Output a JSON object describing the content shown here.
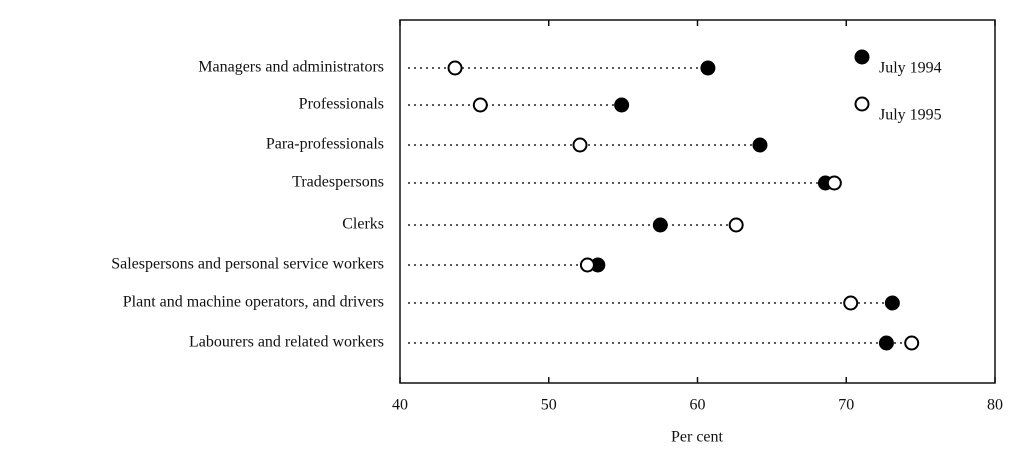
{
  "chart_data": {
    "type": "dot",
    "categories": [
      "Managers and administrators",
      "Professionals",
      "Para-professionals",
      "Tradespersons",
      "Clerks",
      "Salespersons and personal service workers",
      "Plant and machine operators, and drivers",
      "Labourers and related workers"
    ],
    "series": [
      {
        "name": "July 1994",
        "color": "#000000",
        "fill": "#000000",
        "values": [
          60.7,
          54.9,
          64.2,
          68.6,
          57.5,
          53.3,
          73.1,
          72.7
        ]
      },
      {
        "name": "July 1995",
        "color": "#000000",
        "fill": "#ffffff",
        "values": [
          43.7,
          45.4,
          52.1,
          69.2,
          62.6,
          52.6,
          70.3,
          74.4
        ]
      }
    ],
    "xlabel": "Per cent",
    "xlim": [
      40,
      80
    ],
    "xticks": [
      40,
      50,
      60,
      70,
      80
    ],
    "legend": "upper right",
    "grid": false
  }
}
